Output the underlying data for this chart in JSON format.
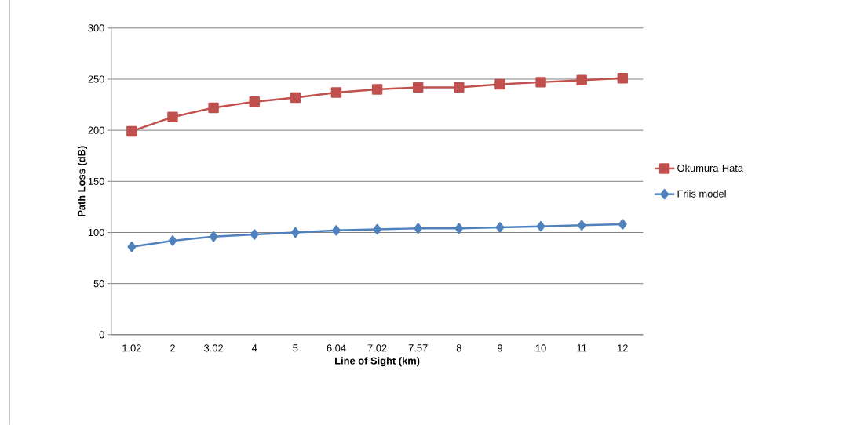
{
  "chart_data": {
    "type": "line",
    "xlabel": "Line of Sight (km)",
    "ylabel": "Path Loss (dB)",
    "categories": [
      "1.02",
      "2",
      "3.02",
      "4",
      "5",
      "6.04",
      "7.02",
      "7.57",
      "8",
      "9",
      "10",
      "11",
      "12"
    ],
    "series": [
      {
        "name": "Okumura-Hata",
        "color": "#c0504d",
        "marker": "square",
        "values": [
          199,
          213,
          222,
          228,
          232,
          237,
          240,
          242,
          242,
          245,
          247,
          249,
          251
        ]
      },
      {
        "name": "Friis model",
        "color": "#4f81bd",
        "marker": "diamond",
        "values": [
          86,
          92,
          96,
          98,
          100,
          102,
          103,
          104,
          104,
          105,
          106,
          107,
          108
        ]
      }
    ],
    "ylim": [
      0,
      300
    ],
    "yticks": [
      0,
      50,
      100,
      150,
      200,
      250,
      300
    ],
    "grid": "y",
    "legend": "right",
    "line_style": "solid"
  }
}
